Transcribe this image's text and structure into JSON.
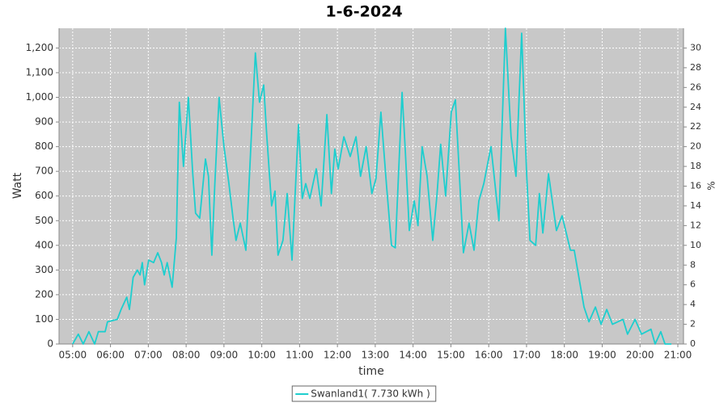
{
  "chart_data": {
    "type": "line",
    "title": "1-6-2024",
    "xlabel": "time",
    "ylabel": "Watt",
    "y2label": "%",
    "grid": true,
    "legend": "bottom",
    "xlim": [
      4.64,
      21.15
    ],
    "xticks": [
      {
        "value": 5,
        "label": "05:00"
      },
      {
        "value": 6,
        "label": "06:00"
      },
      {
        "value": 7,
        "label": "07:00"
      },
      {
        "value": 8,
        "label": "08:00"
      },
      {
        "value": 9,
        "label": "09:00"
      },
      {
        "value": 10,
        "label": "10:00"
      },
      {
        "value": 11,
        "label": "11:00"
      },
      {
        "value": 12,
        "label": "12:00"
      },
      {
        "value": 13,
        "label": "13:00"
      },
      {
        "value": 14,
        "label": "14:00"
      },
      {
        "value": 15,
        "label": "15:00"
      },
      {
        "value": 16,
        "label": "16:00"
      },
      {
        "value": 17,
        "label": "17:00"
      },
      {
        "value": 18,
        "label": "18:00"
      },
      {
        "value": 19,
        "label": "19:00"
      },
      {
        "value": 20,
        "label": "20:00"
      },
      {
        "value": 21,
        "label": "21:00"
      }
    ],
    "ylim": [
      0,
      1280
    ],
    "yticks": [
      0,
      100,
      200,
      300,
      400,
      500,
      600,
      700,
      800,
      900,
      {
        "value": 1000,
        "label": "1,000"
      },
      {
        "value": 1100,
        "label": "1,100"
      },
      {
        "value": 1200,
        "label": "1,200"
      }
    ],
    "y2lim": [
      0,
      32
    ],
    "y2ticks": [
      0,
      2,
      4,
      6,
      8,
      10,
      12,
      14,
      16,
      18,
      20,
      22,
      24,
      26,
      28,
      30
    ],
    "x": [
      5.0,
      5.15,
      5.28,
      5.43,
      5.58,
      5.68,
      5.86,
      5.92,
      6.18,
      6.28,
      6.43,
      6.5,
      6.6,
      6.71,
      6.78,
      6.84,
      6.9,
      7.01,
      7.14,
      7.25,
      7.35,
      7.42,
      7.5,
      7.63,
      7.74,
      7.82,
      7.93,
      8.06,
      8.17,
      8.25,
      8.36,
      8.51,
      8.59,
      8.68,
      8.76,
      8.87,
      9.0,
      9.13,
      9.24,
      9.32,
      9.43,
      9.58,
      9.71,
      9.83,
      9.94,
      10.05,
      10.13,
      10.26,
      10.35,
      10.43,
      10.56,
      10.67,
      10.8,
      10.97,
      11.07,
      11.16,
      11.27,
      11.44,
      11.57,
      11.72,
      11.84,
      11.93,
      12.02,
      12.17,
      12.34,
      12.49,
      12.61,
      12.76,
      12.91,
      13.02,
      13.15,
      13.3,
      13.43,
      13.53,
      13.71,
      13.79,
      13.9,
      14.03,
      14.13,
      14.24,
      14.37,
      14.52,
      14.63,
      14.73,
      14.86,
      15.01,
      15.12,
      15.22,
      15.33,
      15.48,
      15.61,
      15.74,
      15.87,
      16.06,
      16.27,
      16.44,
      16.59,
      16.72,
      16.87,
      17.0,
      17.09,
      17.24,
      17.34,
      17.43,
      17.58,
      17.79,
      17.94,
      18.16,
      18.26,
      18.52,
      18.65,
      18.82,
      18.97,
      19.12,
      19.27,
      19.55,
      19.67,
      19.87,
      20.04,
      20.29,
      20.4,
      20.55,
      20.66,
      20.83
    ],
    "series": [
      {
        "name": "Swanland1( 7.730 kWh )",
        "color": "#1ecece",
        "values": [
          0,
          40,
          0,
          50,
          0,
          50,
          50,
          90,
          100,
          140,
          190,
          140,
          270,
          300,
          280,
          330,
          240,
          340,
          330,
          370,
          330,
          280,
          330,
          230,
          430,
          980,
          720,
          1000,
          700,
          530,
          510,
          750,
          680,
          360,
          650,
          1000,
          800,
          650,
          510,
          420,
          490,
          380,
          800,
          1180,
          980,
          1050,
          850,
          560,
          620,
          360,
          420,
          610,
          340,
          890,
          590,
          650,
          590,
          710,
          560,
          930,
          610,
          790,
          710,
          840,
          760,
          840,
          680,
          800,
          610,
          670,
          940,
          640,
          400,
          390,
          1020,
          800,
          460,
          580,
          480,
          800,
          680,
          420,
          600,
          810,
          600,
          940,
          990,
          700,
          370,
          490,
          380,
          580,
          650,
          800,
          500,
          1280,
          840,
          680,
          1260,
          700,
          420,
          400,
          610,
          450,
          690,
          460,
          520,
          380,
          380,
          150,
          90,
          150,
          80,
          140,
          80,
          100,
          40,
          100,
          40,
          60,
          0,
          50,
          0,
          0
        ]
      }
    ]
  }
}
